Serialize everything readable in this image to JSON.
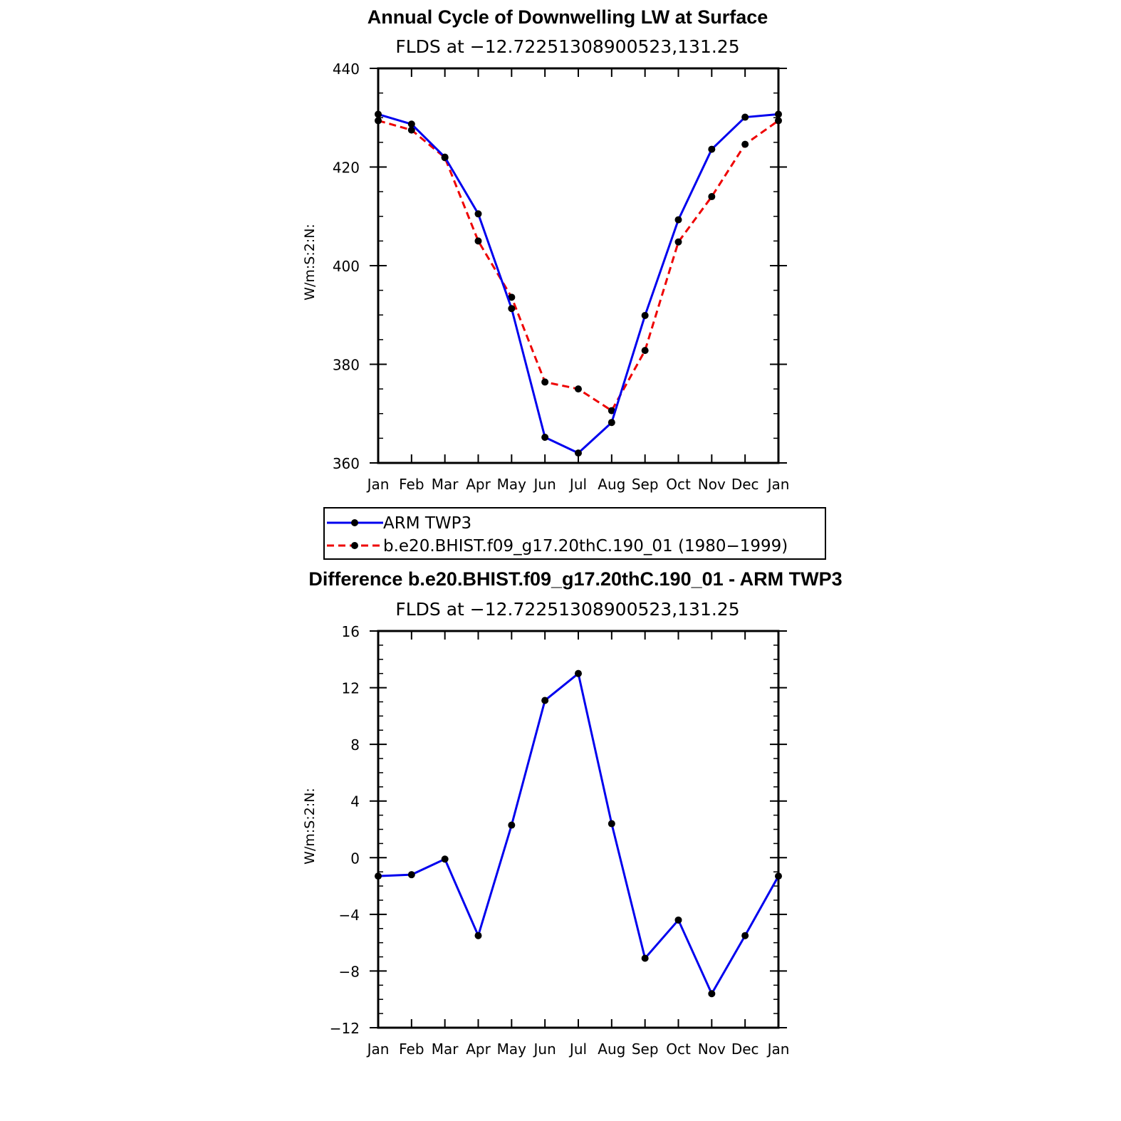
{
  "chart_data": [
    {
      "type": "line",
      "title": "Annual Cycle of Downwelling LW at Surface",
      "subtitle": "FLDS at −12.72251308900523,131.25",
      "xlabel": "",
      "ylabel": "W/m:S:2:N:",
      "categories": [
        "Jan",
        "Feb",
        "Mar",
        "Apr",
        "May",
        "Jun",
        "Jul",
        "Aug",
        "Sep",
        "Oct",
        "Nov",
        "Dec",
        "Jan"
      ],
      "ylim": [
        360,
        440
      ],
      "yticks": [
        "360",
        "380",
        "400",
        "420",
        "440"
      ],
      "series": [
        {
          "name": "ARM TWP3",
          "color": "#0000ee",
          "dash": "solid",
          "values": [
            430.7,
            428.7,
            422.0,
            410.5,
            391.3,
            365.2,
            362.0,
            368.2,
            389.9,
            409.3,
            423.6,
            430.1,
            430.7
          ]
        },
        {
          "name": "b.e20.BHIST.f09_g17.20thC.190_01 (1980−1999)",
          "color": "#ee0000",
          "dash": "dashed",
          "values": [
            429.4,
            427.5,
            421.9,
            405.0,
            393.6,
            376.4,
            375.0,
            370.6,
            382.8,
            404.8,
            414.0,
            424.6,
            429.4
          ]
        }
      ],
      "legend": {
        "position": "below",
        "entries": [
          "ARM TWP3",
          "b.e20.BHIST.f09_g17.20thC.190_01 (1980−1999)"
        ]
      }
    },
    {
      "type": "line",
      "title": "Difference b.e20.BHIST.f09_g17.20thC.190_01 - ARM TWP3",
      "subtitle": "FLDS at −12.72251308900523,131.25",
      "xlabel": "",
      "ylabel": "W/m:S:2:N:",
      "categories": [
        "Jan",
        "Feb",
        "Mar",
        "Apr",
        "May",
        "Jun",
        "Jul",
        "Aug",
        "Sep",
        "Oct",
        "Nov",
        "Dec",
        "Jan"
      ],
      "ylim": [
        -12,
        16
      ],
      "yticks": [
        "−12",
        "−8",
        "−4",
        "0",
        "4",
        "8",
        "12",
        "16"
      ],
      "series": [
        {
          "name": "Difference",
          "color": "#0000ee",
          "dash": "solid",
          "values": [
            -1.3,
            -1.2,
            -0.1,
            -5.5,
            2.3,
            11.1,
            13.0,
            2.4,
            -7.1,
            -4.4,
            -9.6,
            -5.5,
            -1.3
          ]
        }
      ]
    }
  ]
}
